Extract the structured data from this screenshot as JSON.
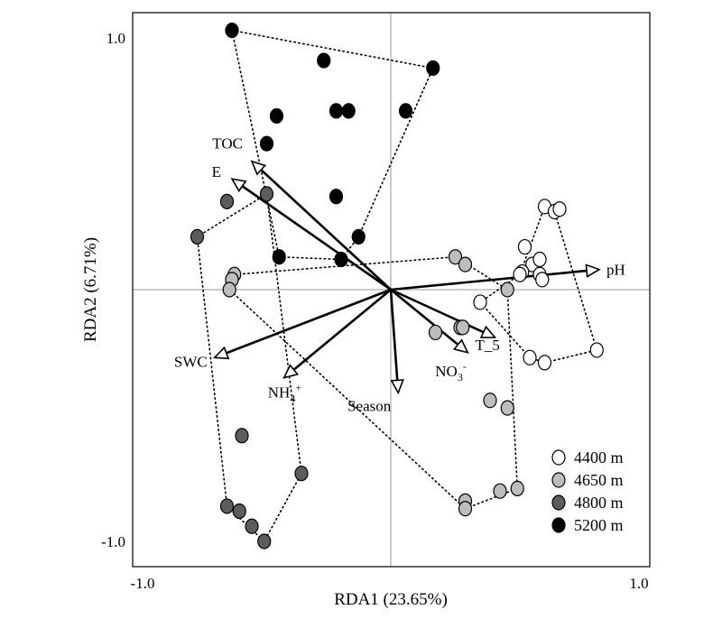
{
  "chart_data": {
    "type": "scatter",
    "xlabel": "RDA1 (23.65%)",
    "ylabel": "RDA2 (6.71%)",
    "xlim": [
      -1.02,
      1.02
    ],
    "ylim": [
      -1.1,
      1.1
    ],
    "x_ticks": [
      {
        "value": -1.0,
        "label": "-1.0"
      },
      {
        "value": 1.0,
        "label": "1.0"
      }
    ],
    "y_ticks": [
      {
        "value": 1.0,
        "label": "1.0"
      },
      {
        "value": -1.0,
        "label": "-1.0"
      }
    ],
    "zero_lines": true,
    "legend": "bottom-right",
    "vectors": [
      {
        "name": "TOC",
        "label": "TOC",
        "x": -0.56,
        "y": 0.51
      },
      {
        "name": "E",
        "label": "E",
        "x": -0.64,
        "y": 0.44
      },
      {
        "name": "pH",
        "label": "pH",
        "x": 0.84,
        "y": 0.08
      },
      {
        "name": "SWC",
        "label": "SWC",
        "x": -0.71,
        "y": -0.27
      },
      {
        "name": "NH4+",
        "label_main": "NH",
        "label_sub": "4",
        "label_sup": "+",
        "x": -0.43,
        "y": -0.35
      },
      {
        "name": "Season",
        "label": "Season",
        "x": 0.03,
        "y": -0.41
      },
      {
        "name": "NO3-",
        "label_main": "NO",
        "label_sub": "3",
        "label_sup": "-",
        "x": 0.31,
        "y": -0.25
      },
      {
        "name": "T_5",
        "label": "T_5",
        "x": 0.42,
        "y": -0.19
      }
    ],
    "series": [
      {
        "name": "4400 m",
        "legend_label": "4400 m",
        "fill": "#ffffff",
        "points": [
          [
            0.62,
            0.33
          ],
          [
            0.66,
            0.31
          ],
          [
            0.68,
            0.32
          ],
          [
            0.54,
            0.17
          ],
          [
            0.57,
            0.1
          ],
          [
            0.53,
            0.07
          ],
          [
            0.52,
            0.06
          ],
          [
            0.6,
            0.12
          ],
          [
            0.6,
            0.06
          ],
          [
            0.61,
            0.04
          ],
          [
            0.36,
            -0.05
          ],
          [
            0.56,
            -0.27
          ],
          [
            0.62,
            -0.29
          ],
          [
            0.83,
            -0.24
          ]
        ],
        "hull": [
          [
            0.62,
            0.33
          ],
          [
            0.66,
            0.31
          ],
          [
            0.83,
            -0.24
          ],
          [
            0.62,
            -0.29
          ],
          [
            0.56,
            -0.27
          ],
          [
            0.36,
            -0.05
          ],
          [
            0.52,
            0.06
          ],
          [
            0.62,
            0.33
          ]
        ]
      },
      {
        "name": "4650 m",
        "legend_label": "4650 m",
        "fill": "#bdbdbd",
        "points": [
          [
            -0.63,
            0.06
          ],
          [
            -0.64,
            0.04
          ],
          [
            -0.65,
            0.0
          ],
          [
            0.26,
            0.13
          ],
          [
            0.3,
            0.1
          ],
          [
            0.47,
            0.0
          ],
          [
            0.28,
            -0.15
          ],
          [
            0.18,
            -0.17
          ],
          [
            0.29,
            -0.15
          ],
          [
            0.4,
            -0.44
          ],
          [
            0.47,
            -0.47
          ],
          [
            0.3,
            -0.84
          ],
          [
            0.3,
            -0.87
          ],
          [
            0.44,
            -0.8
          ],
          [
            0.51,
            -0.79
          ]
        ],
        "hull": [
          [
            -0.63,
            0.06
          ],
          [
            0.26,
            0.13
          ],
          [
            0.47,
            0.0
          ],
          [
            0.51,
            -0.79
          ],
          [
            0.3,
            -0.87
          ],
          [
            -0.65,
            0.0
          ],
          [
            -0.63,
            0.06
          ]
        ]
      },
      {
        "name": "4800 m",
        "legend_label": "4800 m",
        "fill": "#5c5c5c",
        "points": [
          [
            -0.5,
            0.38
          ],
          [
            -0.66,
            0.35
          ],
          [
            -0.78,
            0.21
          ],
          [
            -0.6,
            -0.58
          ],
          [
            -0.36,
            -0.73
          ],
          [
            -0.66,
            -0.86
          ],
          [
            -0.61,
            -0.88
          ],
          [
            -0.56,
            -0.94
          ],
          [
            -0.51,
            -1.0
          ]
        ],
        "hull": [
          [
            -0.5,
            0.38
          ],
          [
            -0.78,
            0.21
          ],
          [
            -0.66,
            -0.86
          ],
          [
            -0.51,
            -1.0
          ],
          [
            -0.36,
            -0.73
          ],
          [
            -0.5,
            0.38
          ]
        ]
      },
      {
        "name": "5200 m",
        "legend_label": "5200 m",
        "fill": "#000000",
        "points": [
          [
            -0.64,
            1.03
          ],
          [
            -0.27,
            0.91
          ],
          [
            0.17,
            0.88
          ],
          [
            -0.22,
            0.71
          ],
          [
            -0.17,
            0.71
          ],
          [
            0.06,
            0.71
          ],
          [
            -0.46,
            0.69
          ],
          [
            -0.5,
            0.58
          ],
          [
            -0.22,
            0.37
          ],
          [
            -0.13,
            0.21
          ],
          [
            -0.45,
            0.13
          ],
          [
            -0.2,
            0.12
          ]
        ],
        "hull": [
          [
            -0.64,
            1.03
          ],
          [
            0.17,
            0.88
          ],
          [
            -0.13,
            0.21
          ],
          [
            -0.2,
            0.12
          ],
          [
            -0.45,
            0.13
          ],
          [
            -0.64,
            1.03
          ]
        ]
      }
    ]
  }
}
